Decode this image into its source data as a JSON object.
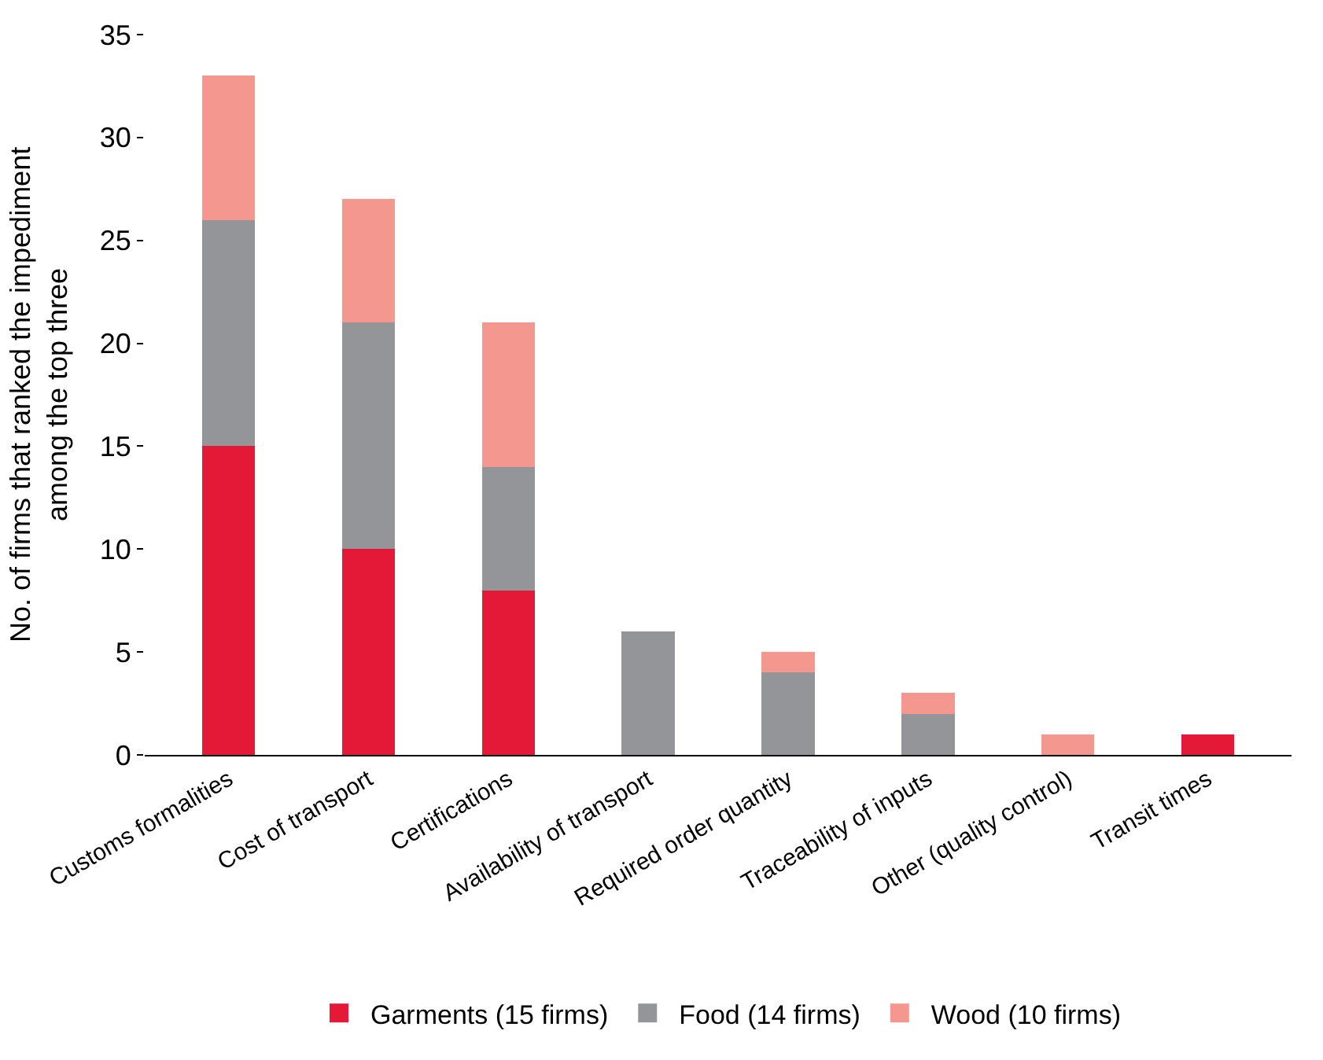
{
  "chart_data": {
    "type": "bar",
    "stacked": true,
    "ylabel": "No. of firms that ranked the impediment\namong the top three",
    "categories": [
      "Customs formalities",
      "Cost of transport",
      "Certifications",
      "Availability of transport",
      "Required order quantity",
      "Traceability of inputs",
      "Other (quality control)",
      "Transit times"
    ],
    "series": [
      {
        "name": "Garments (15 firms)",
        "color": "#e31937",
        "values": [
          15,
          10,
          8,
          0,
          0,
          0,
          0,
          1
        ]
      },
      {
        "name": "Food (14 firms)",
        "color": "#939598",
        "values": [
          11,
          11,
          6,
          6,
          4,
          2,
          0,
          0
        ]
      },
      {
        "name": "Wood (10 firms)",
        "color": "#f4978e",
        "values": [
          7,
          6,
          7,
          0,
          1,
          1,
          1,
          0
        ]
      }
    ],
    "ylim": [
      0,
      35
    ],
    "yticks": [
      0,
      5,
      10,
      15,
      20,
      25,
      30,
      35
    ],
    "legend": "bottom"
  }
}
